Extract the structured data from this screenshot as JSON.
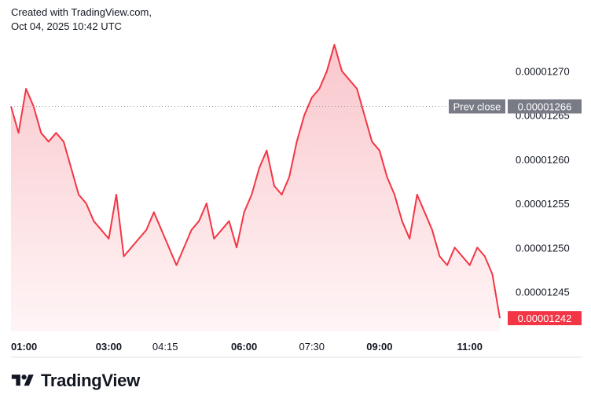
{
  "header": {
    "line1": "Created with TradingView.com,",
    "line2": "Oct 04, 2025 10:42 UTC"
  },
  "footer": {
    "brand": "TradingView"
  },
  "colors": {
    "line": "#f23645",
    "fill_top": "#f9c7cc",
    "fill_bottom": "#fff5f6",
    "prev_close_badge": "#787b86",
    "last_price_badge": "#f23645",
    "text": "#131722",
    "grid_separator": "#e0e3eb"
  },
  "chart_data": {
    "type": "area",
    "title": "",
    "xlabel": "",
    "ylabel": "",
    "grid": false,
    "ylim": [
      1.2405e-05,
      1.2745e-05
    ],
    "x_ticks": [
      {
        "time": "01:00",
        "bold": true
      },
      {
        "time": "03:00",
        "bold": true
      },
      {
        "time": "04:15",
        "bold": false
      },
      {
        "time": "06:00",
        "bold": true
      },
      {
        "time": "07:30",
        "bold": false
      },
      {
        "time": "09:00",
        "bold": true
      },
      {
        "time": "11:00",
        "bold": true
      }
    ],
    "y_ticks": [
      "0.00001270",
      "0.00001265",
      "0.00001260",
      "0.00001255",
      "0.00001250",
      "0.00001245"
    ],
    "y_tick_values": [
      1.27e-05,
      1.265e-05,
      1.26e-05,
      1.255e-05,
      1.25e-05,
      1.245e-05
    ],
    "prev_close": {
      "label": "Prev close",
      "value": 1.266e-05,
      "text": "0.00001266"
    },
    "last_price": {
      "value": 1.242e-05,
      "text": "0.00001242"
    },
    "series": [
      {
        "times": [
          "00:50",
          "01:00",
          "01:10",
          "01:20",
          "01:30",
          "01:40",
          "01:50",
          "02:00",
          "02:10",
          "02:20",
          "02:30",
          "02:40",
          "02:50",
          "03:00",
          "03:10",
          "03:20",
          "03:30",
          "03:40",
          "03:50",
          "04:00",
          "04:10",
          "04:20",
          "04:30",
          "04:40",
          "04:50",
          "05:00",
          "05:10",
          "05:20",
          "05:30",
          "05:40",
          "05:50",
          "06:00",
          "06:10",
          "06:20",
          "06:30",
          "06:40",
          "06:50",
          "07:00",
          "07:10",
          "07:20",
          "07:30",
          "07:40",
          "07:50",
          "08:00",
          "08:10",
          "08:20",
          "08:30",
          "08:40",
          "08:50",
          "09:00",
          "09:10",
          "09:20",
          "09:30",
          "09:40",
          "09:50",
          "10:00",
          "10:10",
          "10:20",
          "10:30",
          "10:40",
          "10:50",
          "11:00",
          "11:10",
          "11:20",
          "11:30",
          "11:40"
        ],
        "values": [
          1.266e-05,
          1.263e-05,
          1.268e-05,
          1.266e-05,
          1.263e-05,
          1.262e-05,
          1.263e-05,
          1.262e-05,
          1.259e-05,
          1.256e-05,
          1.255e-05,
          1.253e-05,
          1.252e-05,
          1.251e-05,
          1.256e-05,
          1.249e-05,
          1.25e-05,
          1.251e-05,
          1.252e-05,
          1.254e-05,
          1.252e-05,
          1.25e-05,
          1.248e-05,
          1.25e-05,
          1.252e-05,
          1.253e-05,
          1.255e-05,
          1.251e-05,
          1.252e-05,
          1.253e-05,
          1.25e-05,
          1.254e-05,
          1.256e-05,
          1.259e-05,
          1.261e-05,
          1.257e-05,
          1.256e-05,
          1.258e-05,
          1.262e-05,
          1.265e-05,
          1.267e-05,
          1.268e-05,
          1.27e-05,
          1.273e-05,
          1.27e-05,
          1.269e-05,
          1.268e-05,
          1.265e-05,
          1.262e-05,
          1.261e-05,
          1.258e-05,
          1.256e-05,
          1.253e-05,
          1.251e-05,
          1.256e-05,
          1.254e-05,
          1.252e-05,
          1.249e-05,
          1.248e-05,
          1.25e-05,
          1.249e-05,
          1.248e-05,
          1.25e-05,
          1.249e-05,
          1.247e-05,
          1.242e-05
        ]
      }
    ]
  }
}
